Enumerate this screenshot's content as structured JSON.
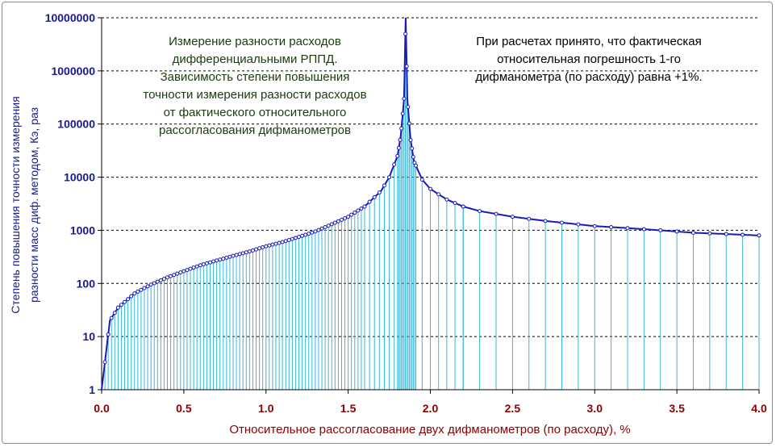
{
  "chart_data": {
    "type": "line",
    "xlabel": "Относительное рассогласование двух дифманометров (по расходу), %",
    "ylabel_lines": [
      "Степень повышения точности измерения",
      "разности масс диф. методом, Кэ, раз"
    ],
    "y_scale": "log",
    "xlim": [
      0,
      4
    ],
    "ylim": [
      1,
      10000000
    ],
    "x_ticks": [
      "0.0",
      "0.5",
      "1.0",
      "1.5",
      "2.0",
      "2.5",
      "3.0",
      "3.5",
      "4.0"
    ],
    "y_ticks": [
      "1",
      "10",
      "100",
      "1000",
      "10000",
      "100000",
      "1000000",
      "10000000"
    ],
    "grid": "horizontal dashed",
    "annotations": {
      "left": [
        "Измерение разности расходов",
        "дифференциальными РППД.",
        "Зависимость степени повышения",
        "точности измерения разности расходов",
        "от фактического относительного",
        "рассогласования дифманометров"
      ],
      "right": [
        "При расчетах принято, что фактическая",
        "относительная погрешность 1-го",
        "дифманометра (по расходу) равна +1%."
      ]
    },
    "series": [
      {
        "x": [
          0.0,
          0.05,
          0.1,
          0.2,
          0.3,
          0.4,
          0.5,
          0.6,
          0.7,
          0.8,
          0.9,
          1.0,
          1.1,
          1.2,
          1.3,
          1.4,
          1.5,
          1.6,
          1.7,
          1.75,
          1.8,
          1.82,
          1.84,
          1.85,
          1.86,
          1.88,
          1.9,
          1.95,
          2.0,
          2.1,
          2.2,
          2.3,
          2.5,
          2.7,
          3.0,
          3.2,
          3.4,
          3.6,
          3.8,
          4.0
        ],
        "y": [
          1,
          20,
          35,
          65,
          95,
          130,
          170,
          220,
          270,
          330,
          400,
          500,
          600,
          750,
          950,
          1300,
          1800,
          2800,
          5500,
          10000,
          25000,
          60000,
          300000,
          10000000,
          300000,
          50000,
          20000,
          9000,
          6000,
          3800,
          2800,
          2300,
          1800,
          1500,
          1200,
          1100,
          1000,
          900,
          850,
          800
        ]
      }
    ],
    "colors": {
      "line": "#1a1ab8",
      "stems": "#3ab8d8",
      "grid": "#000000"
    }
  }
}
